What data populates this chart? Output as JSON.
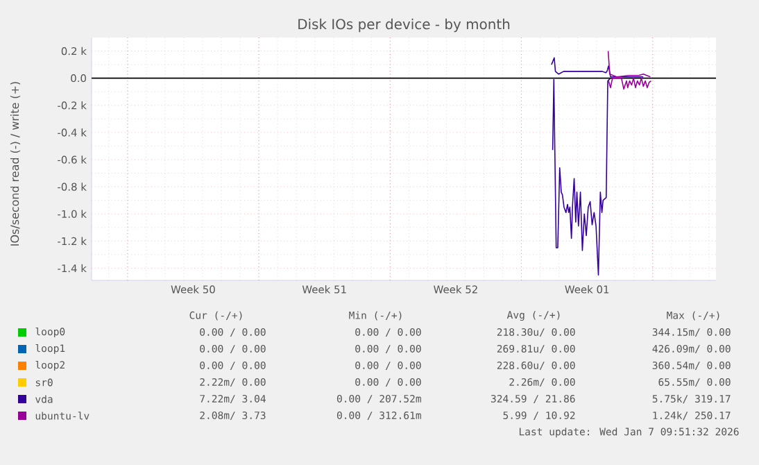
{
  "chart_data": {
    "type": "line",
    "title": "Disk IOs per device - by month",
    "ylabel": "IOs/second read (-) / write (+)",
    "xlim": [
      "2025-12-06T02:00",
      "2026-01-08T09:00"
    ],
    "xticks": [
      {
        "value": "2025-12-08",
        "label": null
      },
      {
        "value": "2025-12-11T12:00",
        "label": "Week 50"
      },
      {
        "value": "2025-12-15",
        "label": null
      },
      {
        "value": "2025-12-18T12:00",
        "label": "Week 51"
      },
      {
        "value": "2025-12-22",
        "label": null
      },
      {
        "value": "2025-12-25T12:00",
        "label": "Week 52"
      },
      {
        "value": "2025-12-29",
        "label": null
      },
      {
        "value": "2026-01-01T12:00",
        "label": "Week 01"
      },
      {
        "value": "2026-01-05",
        "label": null
      }
    ],
    "ylim": [
      -1490,
      300
    ],
    "yticks": [
      {
        "value": 200,
        "label": "0.2 k"
      },
      {
        "value": 0,
        "label": "0.0"
      },
      {
        "value": -200,
        "label": "-0.2 k"
      },
      {
        "value": -400,
        "label": "-0.4 k"
      },
      {
        "value": -600,
        "label": "-0.6 k"
      },
      {
        "value": -800,
        "label": "-0.8 k"
      },
      {
        "value": -1000,
        "label": "-1.0 k"
      },
      {
        "value": -1200,
        "label": "-1.2 k"
      },
      {
        "value": -1400,
        "label": "-1.4 k"
      }
    ],
    "grid": true,
    "legend": "bottom",
    "ref_lines": [
      {
        "axis": "y",
        "value": 0,
        "color": "#000000"
      }
    ],
    "series": [
      {
        "name": "loop0",
        "color": "#00cc00"
      },
      {
        "name": "loop1",
        "color": "#0066b3"
      },
      {
        "name": "loop2",
        "color": "#ff8000"
      },
      {
        "name": "sr0",
        "color": "#ffcc00"
      },
      {
        "name": "vda",
        "color": "#330099",
        "x": [
          "2025-12-30T14:30",
          "2025-12-30T18:00",
          "2025-12-30T19:30",
          "2025-12-30T23:45",
          "2025-12-31T06:00",
          "2025-12-31T12:00",
          "2025-12-31T18:00",
          "2026-01-01T03:30",
          "2026-01-01T13:00",
          "2026-01-01T22:00",
          "2026-01-02T07:30",
          "2026-01-02T12:00",
          "2026-01-02T13:30",
          "2026-01-02T15:30",
          "2026-01-02T18:00",
          "2026-01-03T11:00",
          "2026-01-04T12:00"
        ],
        "values": [
          100,
          150,
          50,
          30,
          50,
          50,
          50,
          50,
          50,
          50,
          50,
          40,
          50,
          90,
          10,
          10,
          10
        ]
      },
      {
        "name": "ubuntu-lv",
        "color": "#990099",
        "x": [
          "2026-01-02T15:00",
          "2026-01-02T17:00",
          "2026-01-03T02:00",
          "2026-01-03T17:30",
          "2026-01-04T06:00",
          "2026-01-04T12:00",
          "2026-01-04T21:00"
        ],
        "values": [
          200,
          30,
          10,
          20,
          20,
          30,
          10
        ]
      },
      {
        "color": "#330099",
        "x": [
          "2025-12-30T16:00",
          "2025-12-30T17:30",
          "2025-12-30T20:30",
          "2025-12-30T22:30",
          "2025-12-31T01:00",
          "2025-12-31T03:00",
          "2025-12-31T04:30",
          "2025-12-31T06:30",
          "2025-12-31T09:00",
          "2025-12-31T11:00",
          "2025-12-31T12:30",
          "2025-12-31T14:00",
          "2025-12-31T16:00",
          "2025-12-31T17:30",
          "2025-12-31T19:30",
          "2025-12-31T21:30",
          "2025-12-31T23:00",
          "2026-01-01T01:00",
          "2026-01-01T03:30",
          "2026-01-01T06:00",
          "2026-01-01T08:30",
          "2026-01-01T11:00",
          "2026-01-01T13:30",
          "2026-01-01T16:00",
          "2026-01-01T18:30",
          "2026-01-01T21:00",
          "2026-01-01T23:30",
          "2026-01-02T02:30",
          "2026-01-02T05:00",
          "2026-01-02T07:00",
          "2026-01-02T08:30",
          "2026-01-02T12:30",
          "2026-01-02T14:30",
          "2026-01-02T18:00"
        ],
        "values": [
          -530,
          -10,
          -1250,
          -1250,
          -660,
          -840,
          -860,
          -950,
          -990,
          -930,
          -990,
          -950,
          -1180,
          -930,
          -740,
          -1060,
          -840,
          -1090,
          -840,
          -1270,
          -1000,
          -1160,
          -950,
          -910,
          -1080,
          -990,
          -1090,
          -1450,
          -840,
          -990,
          -900,
          -880,
          -20,
          0
        ]
      },
      {
        "color": "#990099",
        "x": [
          "2026-01-02T15:30",
          "2026-01-02T18:00",
          "2026-01-02T20:30",
          "2026-01-03T08:00",
          "2026-01-03T11:00",
          "2026-01-03T14:30",
          "2026-01-03T16:00",
          "2026-01-03T18:30",
          "2026-01-03T21:00",
          "2026-01-03T23:30",
          "2026-01-04T02:00",
          "2026-01-04T04:30",
          "2026-01-04T07:00",
          "2026-01-04T09:30",
          "2026-01-04T12:00",
          "2026-01-04T14:30",
          "2026-01-04T17:00",
          "2026-01-04T19:30",
          "2026-01-04T22:00"
        ],
        "values": [
          -20,
          -70,
          0,
          0,
          -80,
          -20,
          -70,
          -20,
          -50,
          0,
          -70,
          -20,
          -50,
          0,
          -60,
          -20,
          -70,
          -30,
          -20
        ]
      }
    ],
    "annotations": [
      "Cur (-/+)",
      "Min (-/+)",
      "Avg (-/+)",
      "Max (-/+)",
      "0.00 /   0.00",
      "0.00 /   0.00",
      "218.30u/   0.00",
      "344.15m/   0.00",
      "0.00 /   0.00",
      "0.00 /   0.00",
      "269.81u/   0.00",
      "426.09m/   0.00",
      "0.00 /   0.00",
      "0.00 /   0.00",
      "228.60u/   0.00",
      "360.54m/   0.00",
      "2.22m/   0.00",
      "0.00 /   0.00",
      "2.26m/   0.00",
      "65.55m/   0.00",
      "7.22m/   3.04",
      "0.00 / 207.52m",
      "324.59 /  21.86",
      "5.75k/ 319.17",
      "2.08m/   3.73",
      "0.00 / 312.61m",
      "5.99 /  10.92",
      "1.24k/ 250.17",
      "Last update: Wed Jan  7 09:51:32 2026"
    ]
  }
}
